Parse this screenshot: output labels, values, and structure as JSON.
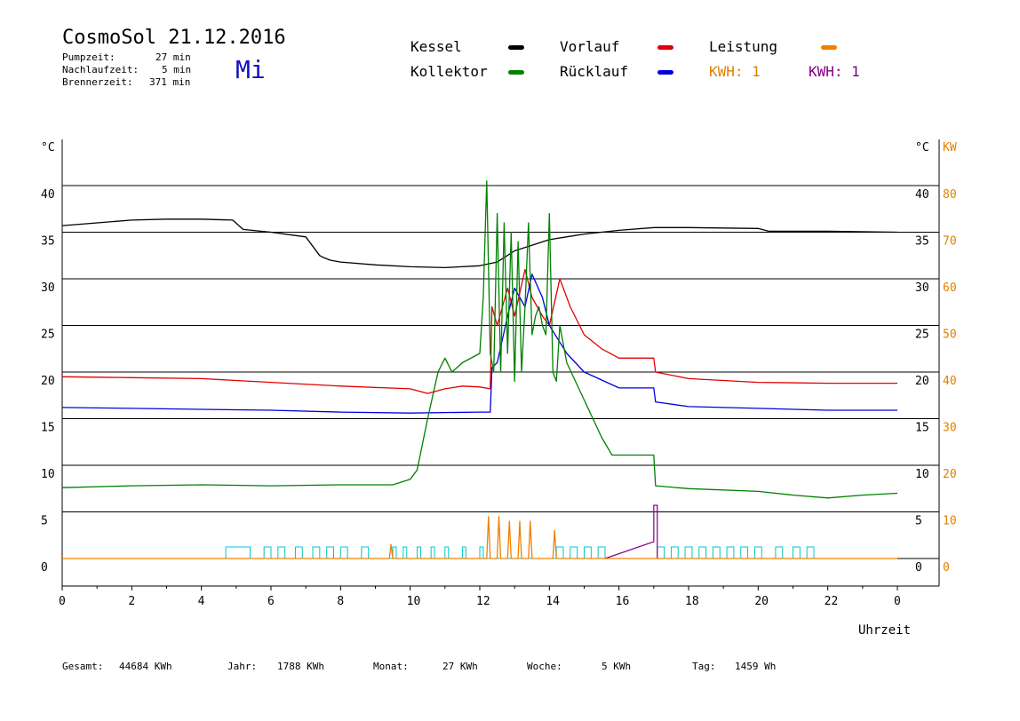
{
  "header": {
    "title": "CosmoSol 21.12.2016",
    "day": "Mi",
    "info": [
      {
        "label": "Pumpzeit:",
        "value": "27 min"
      },
      {
        "label": "Nachlaufzeit:",
        "value": "5 min"
      },
      {
        "label": "Brennerzeit:",
        "value": "371 min"
      }
    ]
  },
  "legend": [
    {
      "label": "Kessel",
      "color": "#000000",
      "text_color": "#000000"
    },
    {
      "label": "Vorlauf",
      "color": "#e00000",
      "text_color": "#000000"
    },
    {
      "label": "Leistung",
      "color": "#f08000",
      "text_color": "#000000"
    },
    {
      "label": "Kollektor",
      "color": "#008000",
      "text_color": "#000000"
    },
    {
      "label": "Rücklauf",
      "color": "#0000e0",
      "text_color": "#000000"
    }
  ],
  "kwh_labels": [
    {
      "text": "KWH: 1",
      "color": "#e08000"
    },
    {
      "text": "KWH: 1",
      "color": "#800080"
    }
  ],
  "footer": [
    {
      "label": "Gesamt:",
      "value": "44684 KWh"
    },
    {
      "label": "Jahr:",
      "value": "1788 KWh"
    },
    {
      "label": "Monat:",
      "value": "27 KWh"
    },
    {
      "label": "Woche:",
      "value": "5 KWh"
    },
    {
      "label": "Tag:",
      "value": "1459 Wh"
    }
  ],
  "chart_data": {
    "type": "line",
    "xlabel": "Uhrzeit",
    "ylabel_left": "°C",
    "ylabel_right_temp": "°C",
    "ylabel_right_power": "KW",
    "xlim": [
      0,
      24
    ],
    "ylim": [
      0,
      40
    ],
    "ylim_power": [
      0,
      80
    ],
    "x_ticks": [
      "0",
      "2",
      "4",
      "6",
      "8",
      "10",
      "12",
      "14",
      "16",
      "18",
      "20",
      "22",
      "0"
    ],
    "y_ticks": [
      "0",
      "5",
      "10",
      "15",
      "20",
      "25",
      "30",
      "35",
      "40"
    ],
    "y_ticks_power": [
      "0",
      "10",
      "20",
      "30",
      "40",
      "50",
      "60",
      "70",
      "80"
    ],
    "grid": true,
    "series": [
      {
        "name": "Kessel",
        "color": "#000000",
        "x": [
          0,
          1,
          2,
          3,
          4,
          4.9,
          5.2,
          6,
          7,
          7.2,
          7.4,
          7.5,
          7.7,
          8,
          9,
          10,
          11,
          12,
          12.5,
          13,
          14,
          15,
          16,
          17,
          18,
          20,
          20.3,
          22,
          24
        ],
        "y": [
          35.7,
          36,
          36.3,
          36.4,
          36.4,
          36.3,
          35.3,
          35,
          34.5,
          33.5,
          32.5,
          32.3,
          32,
          31.8,
          31.5,
          31.3,
          31.2,
          31.4,
          31.8,
          33,
          34.2,
          34.8,
          35.2,
          35.5,
          35.5,
          35.4,
          35.1,
          35.1,
          35
        ]
      },
      {
        "name": "Vorlauf",
        "color": "#e00000",
        "x": [
          0,
          2,
          4,
          6,
          8,
          10,
          10.5,
          11,
          11.5,
          12,
          12.3,
          12.35,
          12.5,
          12.8,
          13,
          13.3,
          13.5,
          13.8,
          14,
          14.3,
          14.6,
          15,
          15.5,
          16,
          17,
          17.05,
          18,
          20,
          22,
          24
        ],
        "y": [
          19.5,
          19.4,
          19.3,
          18.9,
          18.5,
          18.2,
          17.7,
          18.2,
          18.5,
          18.4,
          18.2,
          27,
          25,
          29,
          26,
          31,
          28,
          26,
          25,
          30,
          27,
          24,
          22.5,
          21.5,
          21.5,
          20,
          19.3,
          18.9,
          18.8,
          18.8
        ]
      },
      {
        "name": "Rücklauf",
        "color": "#0000e0",
        "x": [
          0,
          2,
          4,
          6,
          8,
          10,
          12,
          12.3,
          12.35,
          12.5,
          12.8,
          13,
          13.3,
          13.5,
          13.8,
          14,
          14.5,
          15,
          16,
          17,
          17.05,
          18,
          20,
          22,
          24
        ],
        "y": [
          16.2,
          16.1,
          16,
          15.9,
          15.7,
          15.6,
          15.7,
          15.7,
          20.5,
          21,
          26,
          29,
          27,
          30.5,
          28,
          25,
          22,
          20,
          18.3,
          18.3,
          16.8,
          16.3,
          16.1,
          15.9,
          15.9
        ]
      },
      {
        "name": "Kollektor",
        "color": "#008000",
        "x": [
          0,
          2,
          4,
          6,
          8,
          9.5,
          10,
          10.2,
          10.5,
          10.8,
          11,
          11.2,
          11.5,
          12,
          12.1,
          12.2,
          12.3,
          12.4,
          12.5,
          12.6,
          12.7,
          12.8,
          12.9,
          13,
          13.1,
          13.2,
          13.3,
          13.4,
          13.5,
          13.6,
          13.7,
          13.8,
          13.9,
          14,
          14.1,
          14.2,
          14.3,
          14.5,
          15,
          15.5,
          15.8,
          16.5,
          17,
          17.05,
          18,
          20,
          21,
          22,
          23,
          24
        ],
        "y": [
          7.6,
          7.8,
          7.9,
          7.8,
          7.9,
          7.9,
          8.5,
          9.5,
          15,
          20,
          21.5,
          20,
          21,
          22,
          28,
          40.5,
          22,
          20,
          37,
          20,
          36,
          22,
          35,
          19,
          34,
          20,
          27,
          36,
          24,
          26,
          27,
          25,
          24,
          37,
          20,
          19,
          25,
          21,
          17,
          13,
          11.1,
          11.1,
          11.1,
          7.8,
          7.5,
          7.2,
          6.8,
          6.5,
          6.8,
          7
        ]
      },
      {
        "name": "Leistung",
        "color": "#f08000",
        "x": [
          0,
          9.4,
          9.45,
          9.5,
          12.2,
          12.25,
          12.3,
          12.5,
          12.55,
          12.6,
          12.8,
          12.85,
          12.9,
          13.1,
          13.15,
          13.2,
          13.4,
          13.45,
          13.5,
          14.1,
          14.15,
          14.2,
          24
        ],
        "y": [
          0,
          0,
          1.5,
          0,
          0,
          4.5,
          0,
          0,
          4.5,
          0,
          0,
          4,
          0,
          0,
          4,
          0,
          0,
          4,
          0,
          0,
          3,
          0,
          0
        ]
      }
    ],
    "annotations": [
      "Pumpe (cyan)",
      "Brenner (violett)"
    ]
  }
}
